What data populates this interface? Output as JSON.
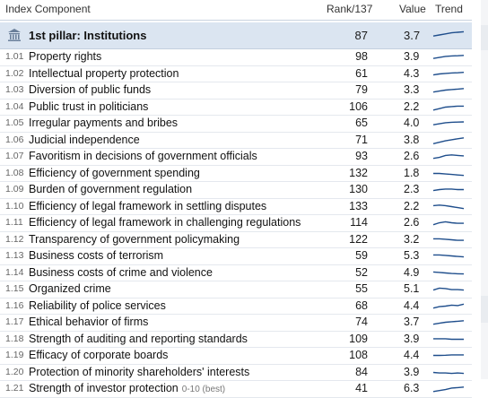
{
  "header": {
    "index": "Index",
    "component": "Component",
    "rank": "Rank/137",
    "value": "Value",
    "trend": "Trend"
  },
  "pillar": {
    "icon": "institution-building-icon",
    "name": "1st pillar: Institutions",
    "rank": "87",
    "value": "3.7",
    "trend": [
      0.4,
      0.5,
      0.6,
      0.7,
      0.75,
      0.8
    ]
  },
  "rows": [
    {
      "code": "1.01",
      "name": "Property rights",
      "note": "",
      "rank": "98",
      "value": "3.9",
      "trend": [
        0.35,
        0.45,
        0.55,
        0.6,
        0.62,
        0.65
      ]
    },
    {
      "code": "1.02",
      "name": "Intellectual property protection",
      "note": "",
      "rank": "61",
      "value": "4.3",
      "trend": [
        0.4,
        0.5,
        0.55,
        0.6,
        0.62,
        0.66
      ]
    },
    {
      "code": "1.03",
      "name": "Diversion of public funds",
      "note": "",
      "rank": "79",
      "value": "3.3",
      "trend": [
        0.3,
        0.4,
        0.5,
        0.55,
        0.6,
        0.65
      ]
    },
    {
      "code": "1.04",
      "name": "Public trust in politicians",
      "note": "",
      "rank": "106",
      "value": "2.2",
      "trend": [
        0.2,
        0.35,
        0.5,
        0.55,
        0.6,
        0.6
      ]
    },
    {
      "code": "1.05",
      "name": "Irregular payments and bribes",
      "note": "",
      "rank": "65",
      "value": "4.0",
      "trend": [
        0.35,
        0.45,
        0.55,
        0.6,
        0.62,
        0.64
      ]
    },
    {
      "code": "1.06",
      "name": "Judicial independence",
      "note": "",
      "rank": "71",
      "value": "3.8",
      "trend": [
        0.15,
        0.3,
        0.45,
        0.55,
        0.65,
        0.75
      ]
    },
    {
      "code": "1.07",
      "name": "Favoritism in decisions of government officials",
      "note": "",
      "rank": "93",
      "value": "2.6",
      "trend": [
        0.3,
        0.4,
        0.6,
        0.65,
        0.6,
        0.55
      ]
    },
    {
      "code": "1.08",
      "name": "Efficiency of government spending",
      "note": "",
      "rank": "132",
      "value": "1.8",
      "trend": [
        0.5,
        0.5,
        0.45,
        0.4,
        0.35,
        0.3
      ]
    },
    {
      "code": "1.09",
      "name": "Burden of government regulation",
      "note": "",
      "rank": "130",
      "value": "2.3",
      "trend": [
        0.4,
        0.5,
        0.55,
        0.55,
        0.5,
        0.5
      ]
    },
    {
      "code": "1.10",
      "name": "Efficiency of legal framework in settling disputes",
      "note": "",
      "rank": "133",
      "value": "2.2",
      "trend": [
        0.6,
        0.65,
        0.6,
        0.5,
        0.4,
        0.3
      ]
    },
    {
      "code": "1.11",
      "name": "Efficiency of legal framework in challenging regulations",
      "note": "",
      "rank": "114",
      "value": "2.6",
      "trend": [
        0.3,
        0.5,
        0.6,
        0.5,
        0.45,
        0.45
      ]
    },
    {
      "code": "1.12",
      "name": "Transparency of government policymaking",
      "note": "",
      "rank": "122",
      "value": "3.2",
      "trend": [
        0.6,
        0.6,
        0.55,
        0.5,
        0.45,
        0.45
      ]
    },
    {
      "code": "1.13",
      "name": "Business costs of terrorism",
      "note": "",
      "rank": "59",
      "value": "5.3",
      "trend": [
        0.6,
        0.6,
        0.55,
        0.5,
        0.45,
        0.4
      ]
    },
    {
      "code": "1.14",
      "name": "Business costs of crime and violence",
      "note": "",
      "rank": "52",
      "value": "4.9",
      "trend": [
        0.6,
        0.55,
        0.5,
        0.45,
        0.42,
        0.4
      ]
    },
    {
      "code": "1.15",
      "name": "Organized crime",
      "note": "",
      "rank": "55",
      "value": "5.1",
      "trend": [
        0.4,
        0.6,
        0.55,
        0.45,
        0.45,
        0.4
      ]
    },
    {
      "code": "1.16",
      "name": "Reliability of police services",
      "note": "",
      "rank": "68",
      "value": "4.4",
      "trend": [
        0.3,
        0.45,
        0.5,
        0.6,
        0.55,
        0.7
      ]
    },
    {
      "code": "1.17",
      "name": "Ethical behavior of firms",
      "note": "",
      "rank": "74",
      "value": "3.7",
      "trend": [
        0.3,
        0.4,
        0.5,
        0.55,
        0.6,
        0.65
      ]
    },
    {
      "code": "1.18",
      "name": "Strength of auditing and reporting standards",
      "note": "",
      "rank": "109",
      "value": "3.9",
      "trend": [
        0.55,
        0.55,
        0.55,
        0.5,
        0.5,
        0.5
      ]
    },
    {
      "code": "1.19",
      "name": "Efficacy of corporate boards",
      "note": "",
      "rank": "108",
      "value": "4.4",
      "trend": [
        0.5,
        0.5,
        0.52,
        0.55,
        0.55,
        0.55
      ]
    },
    {
      "code": "1.20",
      "name": "Protection of minority shareholders' interests",
      "note": "",
      "rank": "84",
      "value": "3.9",
      "trend": [
        0.5,
        0.45,
        0.45,
        0.4,
        0.45,
        0.4
      ]
    },
    {
      "code": "1.21",
      "name": "Strength of investor protection",
      "note": "0-10 (best)",
      "rank": "41",
      "value": "6.3",
      "trend": [
        0.2,
        0.3,
        0.4,
        0.55,
        0.6,
        0.65
      ]
    }
  ],
  "colors": {
    "spark": "#1f4e8c",
    "pillar_bg": "#dbe5f1"
  }
}
